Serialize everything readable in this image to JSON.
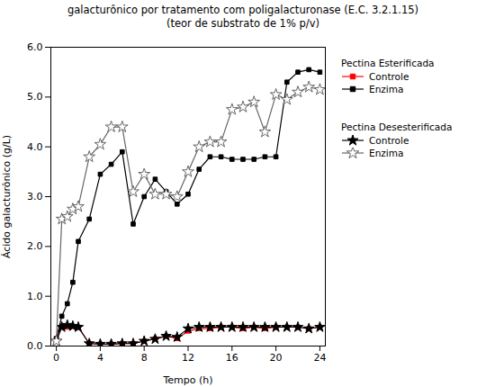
{
  "chart_data": {
    "type": "line",
    "title": "galacturônico por tratamento com poligalacturonase (E.C. 3.2.1.15)",
    "subtitle": "(teor de substrato de 1% p/v)",
    "x_label": "Tempo (h)",
    "y_label": "Ácido galacturônico (g/L)",
    "xlim": [
      -0.5,
      24.5
    ],
    "ylim": [
      0,
      6
    ],
    "xticks": [
      0,
      4,
      8,
      12,
      16,
      20,
      24
    ],
    "yticks": [
      0,
      1,
      2,
      3,
      4,
      5,
      6
    ],
    "grid": false,
    "legend": "right",
    "x": [
      0,
      0.5,
      1,
      1.5,
      2,
      3,
      4,
      5,
      6,
      7,
      8,
      9,
      10,
      11,
      12,
      13,
      14,
      15,
      16,
      17,
      18,
      19,
      20,
      21,
      22,
      23,
      24
    ],
    "series": [
      {
        "name": "Controle",
        "group": "Pectina Esterificada",
        "color": "#ff0000",
        "marker": "square",
        "line_style": "solid",
        "values": [
          0.15,
          0.4,
          0.38,
          0.4,
          0.38,
          0.05,
          0.04,
          0.04,
          0.05,
          0.05,
          0.1,
          0.15,
          0.2,
          0.15,
          0.3,
          0.35,
          0.35,
          0.38,
          0.38,
          0.35,
          0.38,
          0.35,
          0.38,
          0.38,
          0.38,
          0.35,
          0.38
        ]
      },
      {
        "name": "Enzima",
        "group": "Pectina Esterificada",
        "color": "#000000",
        "marker": "square",
        "line_style": "solid",
        "values": [
          0.15,
          0.6,
          0.85,
          1.28,
          2.1,
          2.55,
          3.45,
          3.65,
          3.9,
          2.45,
          3.0,
          3.35,
          3.1,
          2.85,
          3.05,
          3.55,
          3.8,
          3.8,
          3.75,
          3.75,
          3.75,
          3.8,
          3.8,
          5.3,
          5.5,
          5.55,
          5.5
        ]
      },
      {
        "name": "Controle",
        "group": "Pectina Desesterificada",
        "color": "#000000",
        "marker": "star",
        "line_style": "solid",
        "values": [
          0.1,
          0.38,
          0.42,
          0.4,
          0.38,
          0.05,
          0.04,
          0.04,
          0.05,
          0.05,
          0.1,
          0.14,
          0.2,
          0.18,
          0.35,
          0.38,
          0.38,
          0.38,
          0.38,
          0.38,
          0.38,
          0.38,
          0.38,
          0.38,
          0.38,
          0.35,
          0.38
        ]
      },
      {
        "name": "Enzima",
        "group": "Pectina Desesterificada",
        "color": "#666666",
        "marker": "star_open",
        "line_style": "solid",
        "values": [
          0.1,
          2.55,
          2.6,
          2.75,
          2.8,
          3.8,
          4.05,
          4.4,
          4.4,
          3.1,
          3.45,
          3.05,
          3.05,
          3.0,
          3.5,
          4.0,
          4.1,
          4.1,
          4.75,
          4.8,
          4.9,
          4.3,
          5.05,
          4.95,
          5.1,
          5.2,
          5.15
        ]
      }
    ]
  }
}
